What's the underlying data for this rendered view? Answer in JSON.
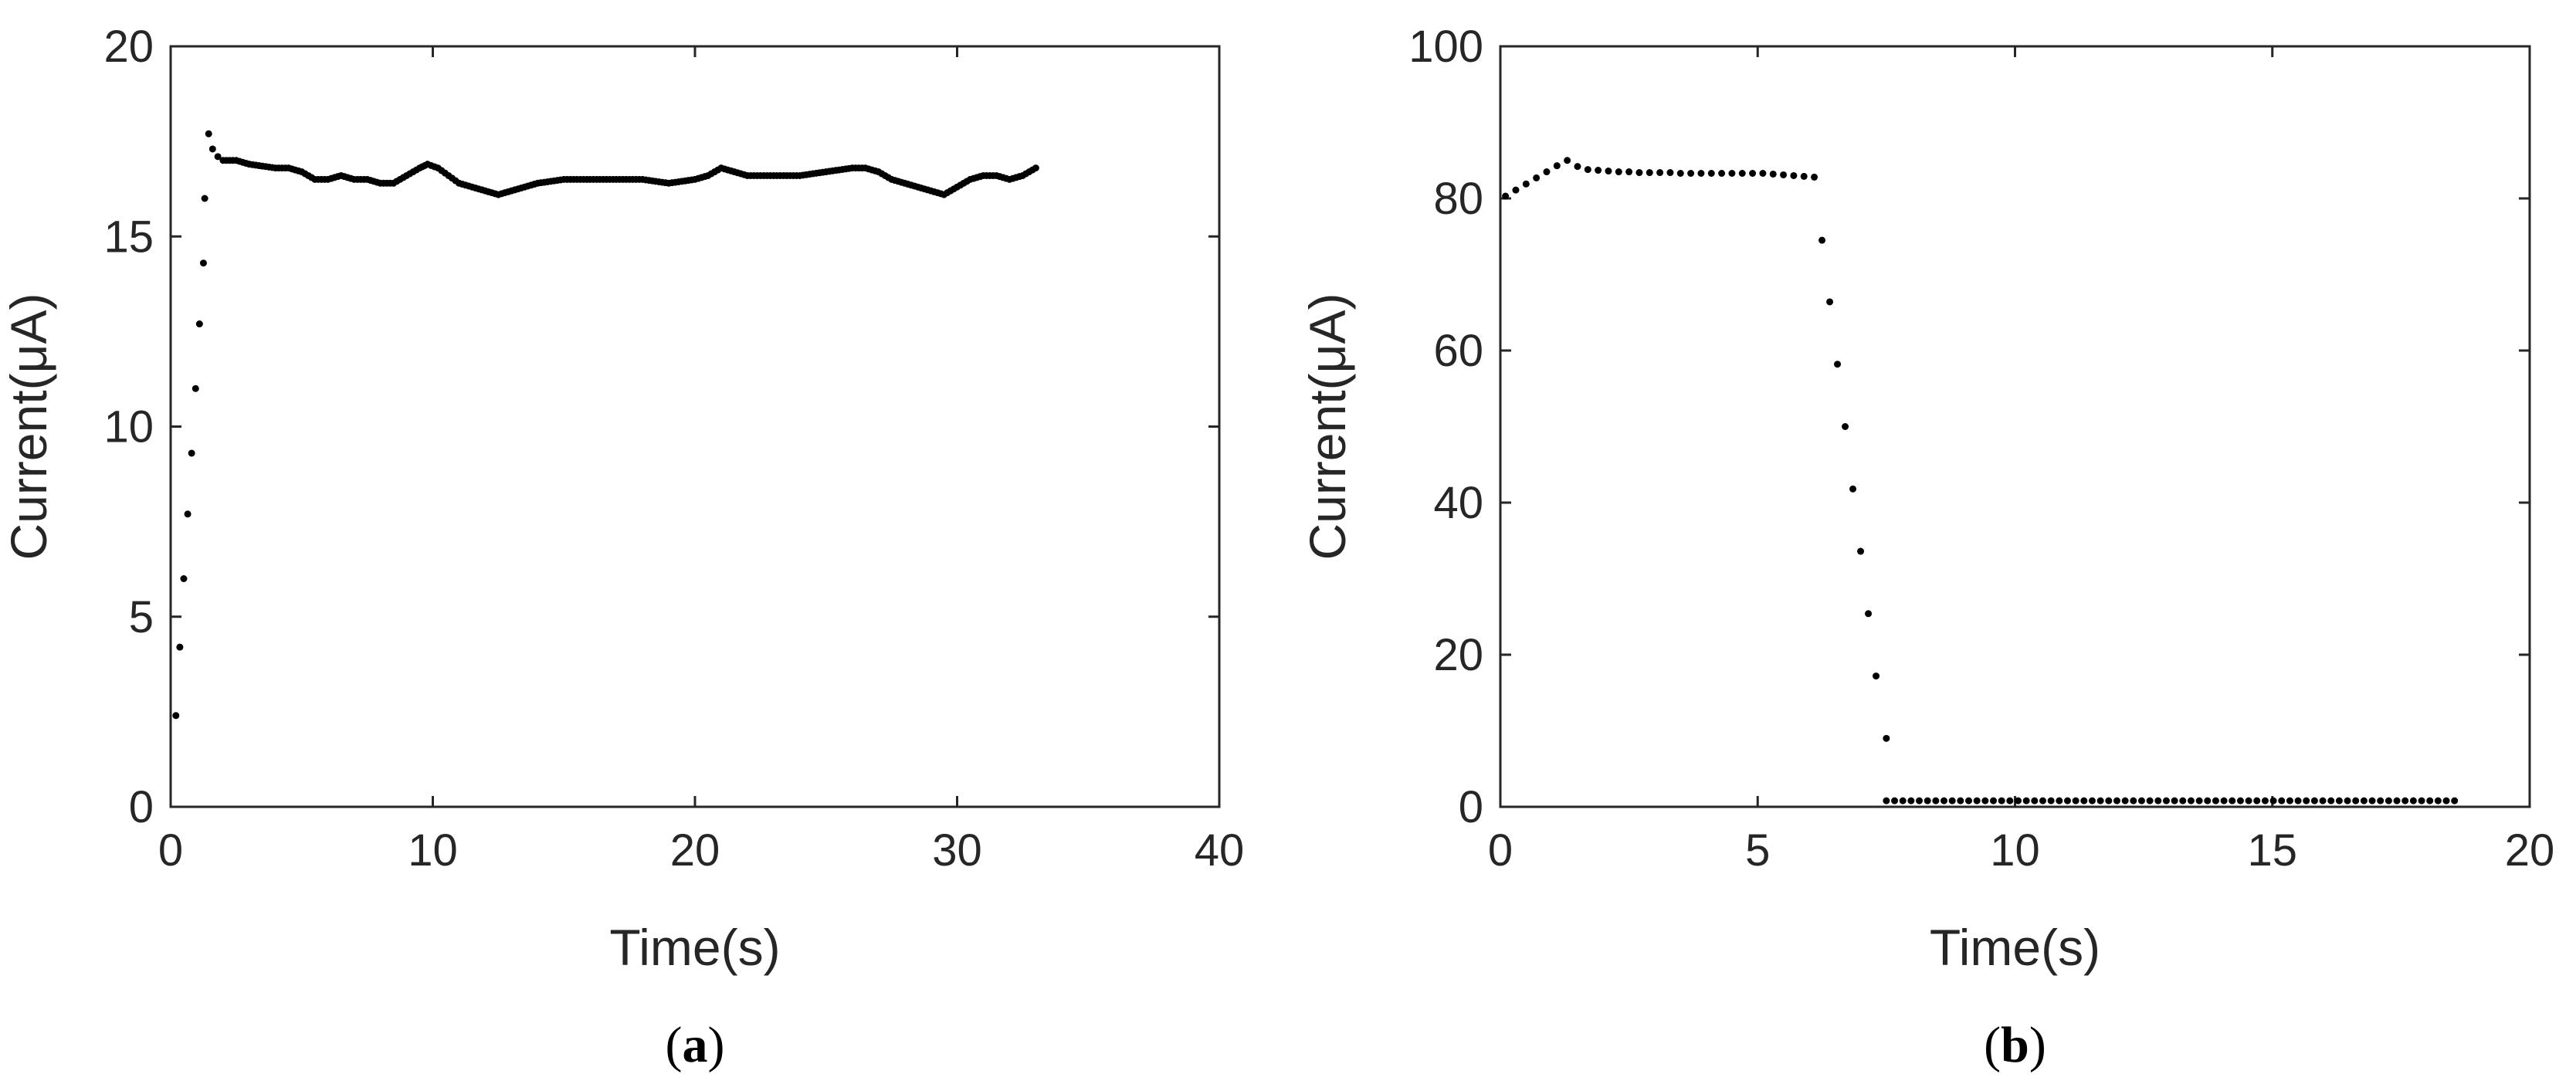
{
  "chart_data": [
    {
      "type": "scatter",
      "panel_label": "(a)",
      "panel_label_parts": [
        "(",
        "a",
        ")"
      ],
      "xlabel": "Time(s)",
      "ylabel": "Current(μA)",
      "xlim": [
        0,
        40
      ],
      "ylim": [
        0,
        20
      ],
      "xticks": [
        0,
        10,
        20,
        30,
        40
      ],
      "yticks": [
        0,
        5,
        10,
        15,
        20
      ],
      "grid": false,
      "series": [
        {
          "x": [
            0.2,
            0.35,
            0.5,
            0.65,
            0.8,
            0.95,
            1.1,
            1.25,
            1.3,
            1.45,
            1.6,
            1.8,
            2.0,
            2.5,
            3.0,
            4.0,
            4.5,
            5.0,
            5.5,
            6.0,
            6.5,
            7.0,
            7.5,
            8.0,
            8.5,
            9.0,
            9.5,
            9.8,
            10.2,
            10.6,
            11.0,
            11.5,
            12.0,
            12.5,
            13.0,
            13.5,
            14.0,
            15.0,
            16.0,
            17.0,
            18.0,
            19.0,
            20.0,
            20.5,
            21.0,
            21.5,
            22.0,
            23.0,
            24.0,
            25.0,
            26.0,
            26.5,
            27.0,
            27.5,
            28.0,
            28.5,
            29.0,
            29.5,
            30.0,
            30.5,
            31.0,
            31.5,
            32.0,
            32.5,
            33.0
          ],
          "y": [
            2.4,
            4.2,
            6.0,
            7.7,
            9.3,
            11.0,
            12.7,
            14.3,
            16.0,
            17.7,
            17.3,
            17.1,
            17.0,
            17.0,
            16.9,
            16.8,
            16.8,
            16.7,
            16.5,
            16.5,
            16.6,
            16.5,
            16.5,
            16.4,
            16.4,
            16.6,
            16.8,
            16.9,
            16.8,
            16.6,
            16.4,
            16.3,
            16.2,
            16.1,
            16.2,
            16.3,
            16.4,
            16.5,
            16.5,
            16.5,
            16.5,
            16.4,
            16.5,
            16.6,
            16.8,
            16.7,
            16.6,
            16.6,
            16.6,
            16.7,
            16.8,
            16.8,
            16.7,
            16.5,
            16.4,
            16.3,
            16.2,
            16.1,
            16.3,
            16.5,
            16.6,
            16.6,
            16.5,
            16.6,
            16.8
          ]
        }
      ]
    },
    {
      "type": "scatter",
      "panel_label": "(b)",
      "panel_label_parts": [
        "(",
        "b",
        ")"
      ],
      "xlabel": "Time(s)",
      "ylabel": "Current(μA)",
      "xlim": [
        0,
        20
      ],
      "ylim": [
        0,
        100
      ],
      "xticks": [
        0,
        5,
        10,
        15,
        20
      ],
      "yticks": [
        0,
        20,
        40,
        60,
        80,
        100
      ],
      "grid": false,
      "series": [
        {
          "x": [
            0.1,
            0.3,
            0.5,
            0.7,
            0.9,
            1.1,
            1.3,
            1.5,
            1.7,
            1.9,
            2.1,
            2.3,
            2.5,
            2.7,
            2.9,
            3.1,
            3.3,
            3.5,
            3.7,
            3.9,
            4.1,
            4.3,
            4.5,
            4.7,
            4.9,
            5.1,
            5.3,
            5.5,
            5.7,
            5.9,
            6.1,
            6.25,
            6.4,
            6.55,
            6.7,
            6.85,
            7.0,
            7.15,
            7.3,
            7.5
          ],
          "y": [
            80.3,
            81.1,
            81.9,
            82.7,
            83.5,
            84.3,
            85.0,
            84.2,
            83.8,
            83.7,
            83.6,
            83.5,
            83.5,
            83.4,
            83.4,
            83.4,
            83.4,
            83.3,
            83.3,
            83.3,
            83.3,
            83.3,
            83.3,
            83.3,
            83.3,
            83.3,
            83.2,
            83.1,
            83.0,
            82.9,
            82.8,
            74.5,
            66.4,
            58.2,
            50.0,
            41.8,
            33.6,
            25.4,
            17.2,
            9.0
          ]
        },
        {
          "x_start": 7.5,
          "x_end": 18.6,
          "x_step": 0.16,
          "y": 0.8
        }
      ]
    }
  ]
}
